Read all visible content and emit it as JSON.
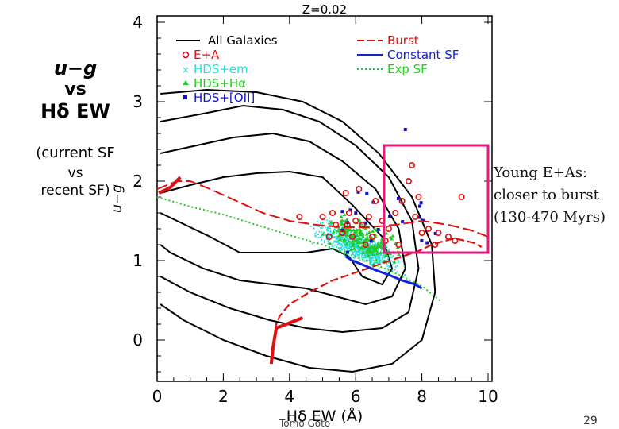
{
  "slide": {
    "side_title_1": "u−g",
    "side_title_2": "vs",
    "side_title_3": "Hδ EW",
    "side_subtitle_1": "(current SF",
    "side_subtitle_2": "vs",
    "side_subtitle_3": "recent SF)",
    "annotation_1": "Young E+As:",
    "annotation_2": "closer to burst",
    "annotation_3": "(130-470 Myrs)",
    "author": "Tomo Goto",
    "slide_number": "29"
  },
  "colors": {
    "burst": "#dd1111",
    "constant_sf": "#1122dd",
    "exp_sf": "#22cc22",
    "ea": "#dd1111",
    "hds_em": "#22dddd",
    "hds_ha": "#22cc22",
    "hds_oii": "#1111cc",
    "box": "#e8197a"
  },
  "chart_data": {
    "type": "scatter",
    "title": "Z=0.02",
    "xlabel": "Hδ EW (Å)",
    "ylabel": "u−g",
    "xlim": [
      0,
      10
    ],
    "ylim": [
      -0.45,
      4
    ],
    "xticks": [
      "0",
      "2",
      "4",
      "6",
      "8",
      "10"
    ],
    "yticks": [
      "0",
      "1",
      "2",
      "3",
      "4"
    ],
    "legend_left": [
      {
        "label": "All Galaxies",
        "style": "black-line"
      },
      {
        "label": "E+A",
        "style": "red-open-circle"
      },
      {
        "label": "HDS+em",
        "style": "cyan-dot"
      },
      {
        "label": "HDS+Hα",
        "style": "green-triangle"
      },
      {
        "label": "HDS+[OII]",
        "style": "blue-square"
      }
    ],
    "legend_right": [
      {
        "label": "Burst",
        "style": "red-dashed"
      },
      {
        "label": "Constant SF",
        "style": "blue-solid"
      },
      {
        "label": "Exp SF",
        "style": "green-dotted"
      }
    ],
    "contours": [
      [
        [
          0.1,
          1.85
        ],
        [
          1.0,
          1.95
        ],
        [
          2.0,
          2.05
        ],
        [
          3.0,
          2.1
        ],
        [
          4.0,
          2.12
        ],
        [
          5.0,
          2.05
        ],
        [
          5.9,
          1.7
        ],
        [
          6.8,
          1.3
        ],
        [
          7.1,
          0.9
        ],
        [
          6.8,
          0.7
        ],
        [
          6.2,
          0.8
        ],
        [
          5.8,
          1.05
        ],
        [
          5.3,
          1.15
        ],
        [
          4.5,
          1.1
        ],
        [
          3.5,
          1.1
        ],
        [
          2.5,
          1.1
        ],
        [
          1.6,
          1.3
        ],
        [
          0.6,
          1.5
        ],
        [
          0.1,
          1.6
        ]
      ],
      [
        [
          0.1,
          2.35
        ],
        [
          1.2,
          2.45
        ],
        [
          2.3,
          2.55
        ],
        [
          3.5,
          2.6
        ],
        [
          4.6,
          2.5
        ],
        [
          5.6,
          2.25
        ],
        [
          6.6,
          1.9
        ],
        [
          7.3,
          1.4
        ],
        [
          7.5,
          0.9
        ],
        [
          7.1,
          0.55
        ],
        [
          6.3,
          0.45
        ],
        [
          5.4,
          0.55
        ],
        [
          4.5,
          0.65
        ],
        [
          3.5,
          0.7
        ],
        [
          2.5,
          0.75
        ],
        [
          1.4,
          0.9
        ],
        [
          0.4,
          1.1
        ],
        [
          0.1,
          1.2
        ]
      ],
      [
        [
          0.1,
          2.75
        ],
        [
          1.4,
          2.85
        ],
        [
          2.6,
          2.95
        ],
        [
          3.8,
          2.9
        ],
        [
          4.9,
          2.75
        ],
        [
          6.0,
          2.45
        ],
        [
          7.0,
          2.05
        ],
        [
          7.7,
          1.5
        ],
        [
          7.9,
          0.9
        ],
        [
          7.6,
          0.35
        ],
        [
          6.8,
          0.15
        ],
        [
          5.6,
          0.1
        ],
        [
          4.5,
          0.15
        ],
        [
          3.4,
          0.25
        ],
        [
          2.2,
          0.4
        ],
        [
          1.0,
          0.6
        ],
        [
          0.1,
          0.8
        ]
      ],
      [
        [
          0.1,
          3.1
        ],
        [
          1.5,
          3.15
        ],
        [
          3.0,
          3.12
        ],
        [
          4.4,
          3.0
        ],
        [
          5.6,
          2.75
        ],
        [
          6.7,
          2.35
        ],
        [
          7.7,
          1.8
        ],
        [
          8.3,
          1.2
        ],
        [
          8.4,
          0.6
        ],
        [
          8.0,
          0.0
        ],
        [
          7.1,
          -0.3
        ],
        [
          5.9,
          -0.4
        ],
        [
          4.6,
          -0.35
        ],
        [
          3.3,
          -0.2
        ],
        [
          2.0,
          0.0
        ],
        [
          0.8,
          0.25
        ],
        [
          0.1,
          0.45
        ]
      ]
    ],
    "series": [
      {
        "name": "Burst",
        "x": [
          3.45,
          3.5,
          3.55,
          3.6,
          3.7,
          4.0,
          4.6,
          5.3,
          6.0,
          6.7,
          7.4,
          7.9,
          8.3,
          8.7,
          9.0,
          9.3,
          9.6,
          9.8
        ],
        "y": [
          -0.3,
          -0.1,
          0.05,
          0.2,
          0.3,
          0.45,
          0.6,
          0.75,
          0.85,
          0.95,
          1.05,
          1.12,
          1.2,
          1.25,
          1.28,
          1.25,
          1.22,
          1.17
        ]
      },
      {
        "name": "Burst (early)",
        "x": [
          0.0,
          0.3,
          0.6,
          1.0,
          1.6,
          2.4,
          3.2,
          4.0,
          4.8,
          5.6,
          6.4,
          7.2,
          8.0,
          8.8,
          9.5,
          10.0
        ],
        "y": [
          1.9,
          1.95,
          2.0,
          2.0,
          1.9,
          1.75,
          1.6,
          1.5,
          1.45,
          1.42,
          1.42,
          1.45,
          1.5,
          1.45,
          1.38,
          1.3
        ]
      },
      {
        "name": "Constant SF",
        "x": [
          5.7,
          5.9,
          6.2,
          6.6,
          7.0,
          7.4,
          7.8,
          8.0
        ],
        "y": [
          1.05,
          1.0,
          0.95,
          0.88,
          0.82,
          0.75,
          0.7,
          0.65
        ]
      },
      {
        "name": "Exp SF",
        "x": [
          0.0,
          1.0,
          2.0,
          3.0,
          4.0,
          5.0,
          6.0,
          7.0,
          7.5,
          8.0,
          8.3,
          8.6
        ],
        "y": [
          1.8,
          1.68,
          1.58,
          1.45,
          1.32,
          1.2,
          1.05,
          0.88,
          0.78,
          0.68,
          0.58,
          0.48
        ]
      }
    ],
    "ea_points": [
      [
        5.6,
        1.35
      ],
      [
        5.8,
        1.6
      ],
      [
        6.0,
        1.5
      ],
      [
        5.9,
        1.3
      ],
      [
        6.2,
        1.45
      ],
      [
        6.4,
        1.55
      ],
      [
        6.5,
        1.3
      ],
      [
        6.8,
        1.5
      ],
      [
        7.0,
        1.4
      ],
      [
        7.2,
        1.6
      ],
      [
        7.4,
        1.75
      ],
      [
        7.6,
        2.0
      ],
      [
        7.8,
        1.55
      ],
      [
        8.0,
        1.35
      ],
      [
        8.2,
        1.4
      ],
      [
        8.5,
        1.35
      ],
      [
        8.8,
        1.3
      ],
      [
        9.0,
        1.25
      ],
      [
        9.2,
        1.8
      ],
      [
        7.7,
        2.2
      ],
      [
        7.9,
        1.8
      ],
      [
        6.6,
        1.75
      ],
      [
        6.1,
        1.9
      ],
      [
        5.7,
        1.85
      ],
      [
        5.4,
        1.45
      ],
      [
        5.3,
        1.6
      ],
      [
        5.2,
        1.3
      ],
      [
        6.9,
        1.25
      ],
      [
        7.3,
        1.2
      ],
      [
        8.4,
        1.2
      ],
      [
        5.0,
        1.55
      ],
      [
        4.3,
        1.55
      ],
      [
        6.3,
        1.2
      ],
      [
        5.75,
        1.45
      ]
    ],
    "box": {
      "x": [
        7.0,
        10.0
      ],
      "y": [
        1.1,
        2.45
      ]
    }
  }
}
